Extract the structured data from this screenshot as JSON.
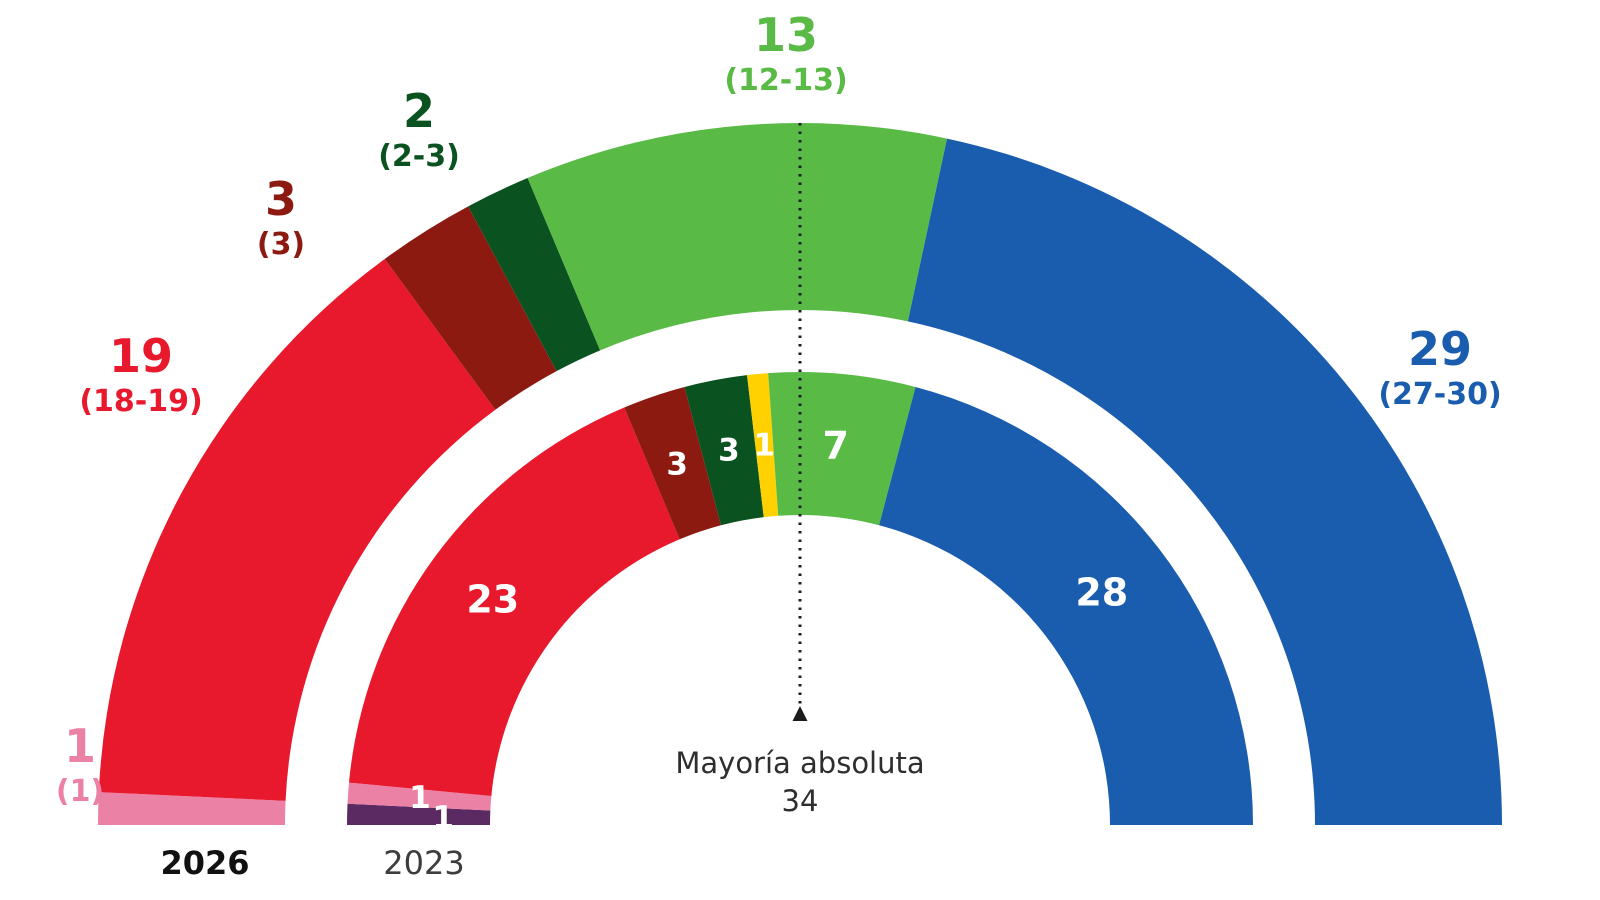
{
  "chart_data": {
    "type": "hemicycle",
    "total_seats": 67,
    "legend_position": "none",
    "majority": {
      "label": "Mayoría absoluta",
      "value": "34",
      "seats": 34
    },
    "rings": [
      {
        "year": "2026",
        "position": "outer",
        "segments": [
          {
            "name": "pink",
            "color": "#ec81a6",
            "seats": 1,
            "label": "1",
            "range": "(1)"
          },
          {
            "name": "red",
            "color": "#e8192c",
            "seats": 19,
            "label": "19",
            "range": "(18-19)"
          },
          {
            "name": "dark-red",
            "color": "#8c1a11",
            "seats": 3,
            "label": "3",
            "range": "(3)"
          },
          {
            "name": "dark-green",
            "color": "#0a5220",
            "seats": 2,
            "label": "2",
            "range": "(2-3)"
          },
          {
            "name": "green",
            "color": "#59ba46",
            "seats": 13,
            "label": "13",
            "range": "(12-13)"
          },
          {
            "name": "blue",
            "color": "#1a5cae",
            "seats": 29,
            "label": "29",
            "range": "(27-30)"
          }
        ]
      },
      {
        "year": "2023",
        "position": "inner",
        "segments": [
          {
            "name": "purple",
            "color": "#5b2a63",
            "seats": 1,
            "label": "1"
          },
          {
            "name": "pink",
            "color": "#ec81a6",
            "seats": 1,
            "label": "1"
          },
          {
            "name": "red",
            "color": "#e8192c",
            "seats": 23,
            "label": "23"
          },
          {
            "name": "dark-red",
            "color": "#8c1a11",
            "seats": 3,
            "label": "3"
          },
          {
            "name": "dark-green",
            "color": "#0a5220",
            "seats": 3,
            "label": "3"
          },
          {
            "name": "yellow",
            "color": "#ffd100",
            "seats": 1,
            "label": "1"
          },
          {
            "name": "green",
            "color": "#59ba46",
            "seats": 7,
            "label": "7"
          },
          {
            "name": "blue",
            "color": "#1a5cae",
            "seats": 28,
            "label": "28"
          }
        ]
      }
    ]
  }
}
